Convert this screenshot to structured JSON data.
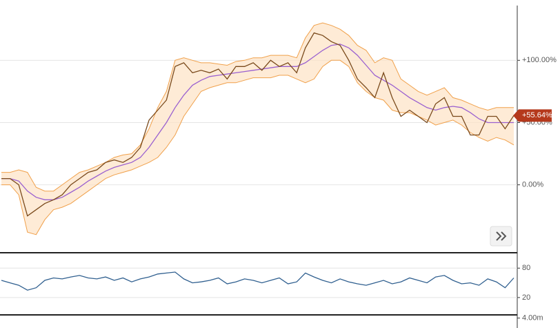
{
  "chart_data": [
    {
      "type": "line",
      "ylim": [
        -54,
        144
      ],
      "yticks": [
        {
          "value": 0,
          "label": "0.00%"
        },
        {
          "value": 50,
          "label": "+50.00%"
        },
        {
          "value": 100,
          "label": "+100.00%"
        }
      ],
      "grid": true,
      "last_value": {
        "value": 55.64,
        "label": "+55.64%",
        "color": "#b5391c"
      },
      "series": [
        {
          "name": "Upper band",
          "color": "#f0a04a",
          "band": "upper",
          "values": [
            10,
            10,
            12,
            10,
            -2,
            -5,
            -5,
            0,
            5,
            10,
            12,
            15,
            18,
            22,
            24,
            25,
            32,
            45,
            62,
            75,
            100,
            102,
            100,
            98,
            98,
            97,
            96,
            99,
            100,
            102,
            102,
            104,
            104,
            104,
            102,
            118,
            128,
            130,
            128,
            125,
            120,
            112,
            108,
            98,
            102,
            100,
            85,
            80,
            75,
            72,
            75,
            78,
            70,
            68,
            65,
            62,
            60,
            62,
            62,
            62
          ]
        },
        {
          "name": "Lower band",
          "color": "#f0a04a",
          "band": "lower",
          "values": [
            0,
            0,
            -8,
            -38,
            -40,
            -28,
            -20,
            -18,
            -15,
            -10,
            -5,
            0,
            5,
            8,
            10,
            12,
            15,
            18,
            22,
            30,
            40,
            55,
            65,
            75,
            78,
            80,
            82,
            82,
            84,
            86,
            86,
            86,
            88,
            88,
            85,
            82,
            85,
            95,
            100,
            100,
            95,
            82,
            75,
            70,
            68,
            60,
            58,
            58,
            55,
            52,
            48,
            50,
            52,
            48,
            42,
            38,
            35,
            38,
            36,
            32
          ]
        },
        {
          "name": "Moving average",
          "color": "#9a60d0",
          "values": [
            5,
            5,
            3,
            -5,
            -10,
            -12,
            -12,
            -10,
            -6,
            -2,
            3,
            7,
            11,
            14,
            16,
            18,
            22,
            30,
            40,
            50,
            62,
            72,
            80,
            84,
            87,
            88,
            89,
            90,
            91,
            92,
            93,
            94,
            95,
            95,
            95,
            98,
            103,
            108,
            112,
            113,
            110,
            104,
            96,
            88,
            84,
            80,
            75,
            70,
            66,
            62,
            60,
            62,
            63,
            62,
            58,
            53,
            50,
            50,
            50,
            50
          ]
        },
        {
          "name": "Price",
          "color": "#7a4a1c",
          "values": [
            5,
            5,
            0,
            -25,
            -20,
            -15,
            -12,
            -8,
            0,
            5,
            10,
            12,
            18,
            20,
            18,
            22,
            30,
            52,
            60,
            68,
            95,
            98,
            90,
            92,
            90,
            93,
            85,
            95,
            95,
            98,
            92,
            100,
            95,
            98,
            90,
            110,
            122,
            120,
            115,
            112,
            100,
            85,
            78,
            70,
            90,
            70,
            55,
            60,
            55,
            50,
            65,
            70,
            55,
            55,
            40,
            40,
            55,
            55,
            45,
            55.64
          ]
        }
      ]
    },
    {
      "type": "line",
      "ylim": [
        -14,
        110
      ],
      "yticks": [
        20,
        80
      ],
      "grid": true,
      "series": [
        {
          "name": "RSI",
          "color": "#2f5f8f",
          "values": [
            55,
            50,
            45,
            35,
            40,
            55,
            60,
            58,
            62,
            65,
            60,
            58,
            62,
            55,
            60,
            52,
            58,
            62,
            68,
            70,
            72,
            58,
            50,
            52,
            55,
            60,
            48,
            52,
            58,
            55,
            50,
            55,
            60,
            48,
            52,
            70,
            62,
            55,
            50,
            58,
            52,
            48,
            45,
            50,
            55,
            48,
            52,
            60,
            55,
            50,
            62,
            65,
            55,
            48,
            50,
            45,
            58,
            52,
            40,
            60
          ]
        }
      ]
    },
    {
      "type": "bar",
      "ylim": [
        0,
        5000000
      ],
      "yticks": [
        {
          "value": 4000000,
          "label": "4.00m"
        }
      ]
    }
  ]
}
